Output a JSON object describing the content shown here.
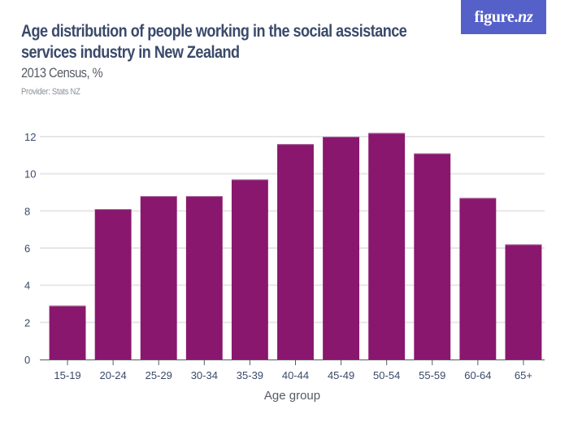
{
  "header": {
    "title_lines": [
      "Age distribution of people working in the social assistance",
      "services industry in New Zealand"
    ],
    "subtitle": "2013 Census, %",
    "provider": "Provider: Stats NZ"
  },
  "logo": {
    "text_main": "figure.",
    "text_accent": "nz",
    "background": "#5561c8"
  },
  "chart_data": {
    "type": "bar",
    "title": "Age distribution of people working in the social assistance services industry in New Zealand",
    "subtitle": "2013 Census, %",
    "xlabel": "Age group",
    "ylabel": "",
    "categories": [
      "15-19",
      "20-24",
      "25-29",
      "30-34",
      "35-39",
      "40-44",
      "45-49",
      "50-54",
      "55-59",
      "60-64",
      "65+"
    ],
    "values": [
      2.9,
      8.1,
      8.8,
      8.8,
      9.7,
      11.6,
      12.0,
      12.2,
      11.1,
      8.7,
      6.2
    ],
    "ylim": [
      0,
      12
    ],
    "yticks": [
      0,
      2,
      4,
      6,
      8,
      10,
      12
    ],
    "grid": true,
    "legend": "none",
    "bar_color": "#89176e",
    "grid_color": "#e6e6e6",
    "axis_color": "#555a63"
  }
}
